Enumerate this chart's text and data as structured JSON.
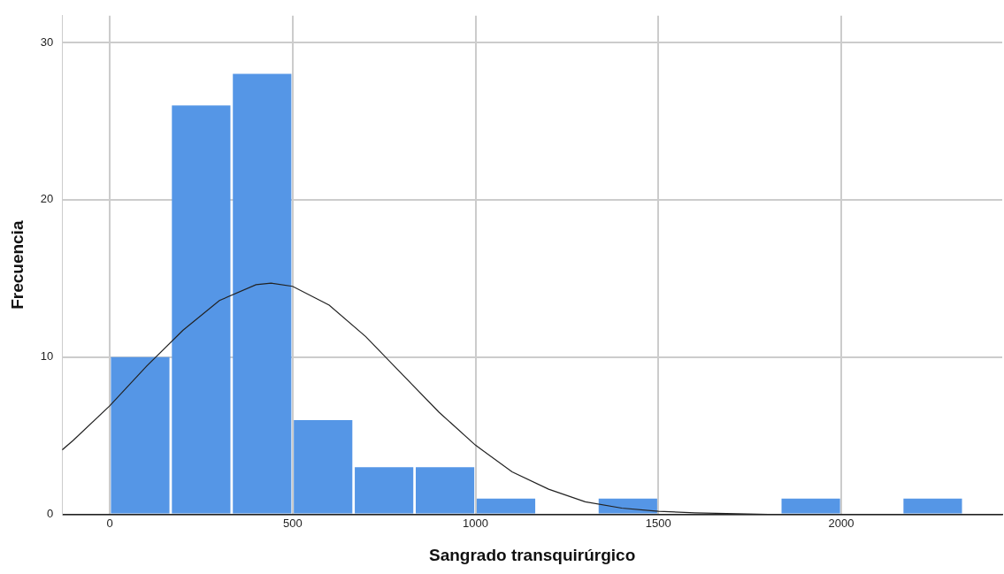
{
  "chart_data": {
    "type": "histogram",
    "xlabel": "Sangrado transquirúrgico",
    "ylabel": "Frecuencia",
    "bins": [
      0,
      166.67,
      333.33,
      500,
      666.67,
      833.33,
      1000,
      1166.67,
      1333.33,
      1500,
      1666.67,
      1833.33,
      2000,
      2166.67,
      2333.33
    ],
    "values": [
      10,
      26,
      28,
      6,
      3,
      3,
      1,
      0,
      1,
      0,
      0,
      1,
      0,
      1
    ],
    "color": "#5596e6",
    "series": [
      {
        "type": "line",
        "color": "#222222",
        "x": [
          -130,
          -100,
          0,
          100,
          200,
          300,
          400,
          441,
          500,
          600,
          700,
          800,
          900,
          1000,
          1100,
          1200,
          1300,
          1400,
          1500,
          1600,
          1800,
          2000,
          2440
        ],
        "values": [
          4.1,
          4.7,
          6.9,
          9.4,
          11.7,
          13.6,
          14.6,
          14.7,
          14.5,
          13.3,
          11.3,
          8.9,
          6.5,
          4.4,
          2.7,
          1.6,
          0.8,
          0.4,
          0.2,
          0.1,
          0,
          0,
          0
        ]
      }
    ],
    "xlim": [
      -130,
      2440
    ],
    "xticks": [
      0,
      500,
      1000,
      1500,
      2000
    ],
    "ylim": [
      0,
      31.7
    ],
    "yticks": [
      0,
      10,
      20,
      30
    ],
    "grid": true,
    "legend": false,
    "marker": "none"
  }
}
